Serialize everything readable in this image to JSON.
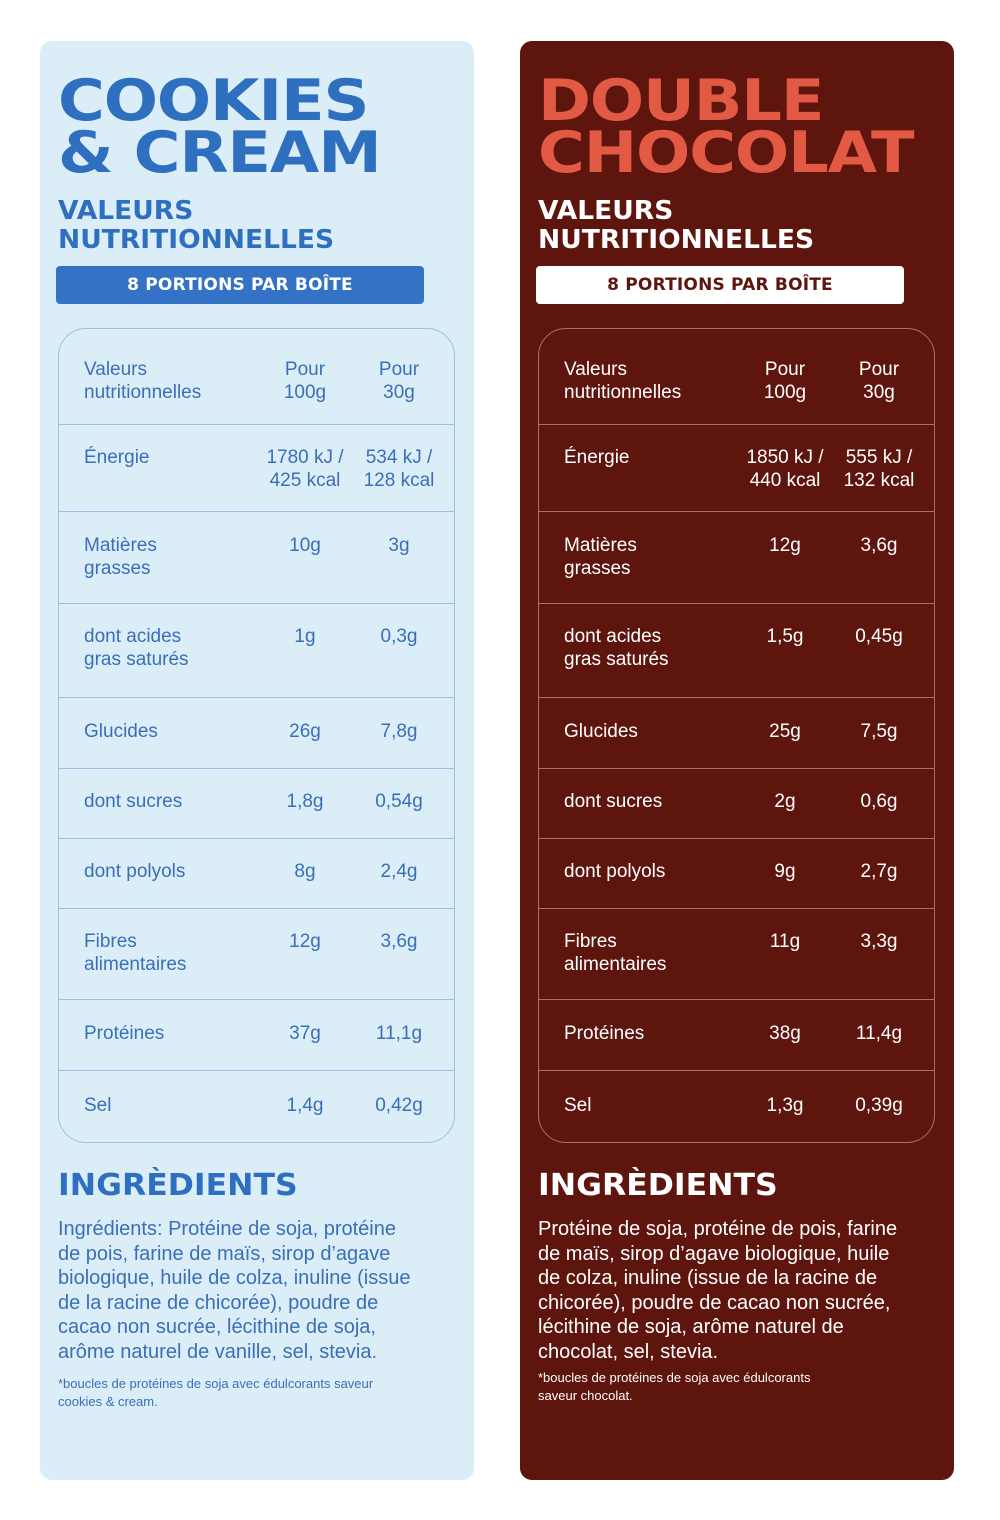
{
  "left": {
    "title_line1": "COOKIES",
    "title_line2": "& CREAM",
    "subtitle_line1": "VALEURS",
    "subtitle_line2": "NUTRITIONNELLES",
    "portions": "8 PORTIONS PAR BOÎTE",
    "header": {
      "label_line1": "Valeurs",
      "label_line2": "nutritionnelles",
      "col1_line1": "Pour",
      "col1_line2": "100g",
      "col2_line1": "Pour",
      "col2_line2": "30g"
    },
    "rows": [
      {
        "l1": "Énergie",
        "l2": "",
        "v100a": "1780 kJ /",
        "v100b": "425 kcal",
        "v30a": "534 kJ /",
        "v30b": "128 kcal"
      },
      {
        "l1": "Matières",
        "l2": "grasses",
        "v100a": "10g",
        "v100b": "",
        "v30a": "3g",
        "v30b": ""
      },
      {
        "l1": "dont acides",
        "l2": "gras saturés",
        "v100a": "1g",
        "v100b": "",
        "v30a": "0,3g",
        "v30b": ""
      },
      {
        "l1": "Glucides",
        "l2": "",
        "v100a": "26g",
        "v100b": "",
        "v30a": "7,8g",
        "v30b": ""
      },
      {
        "l1": "dont sucres",
        "l2": "",
        "v100a": "1,8g",
        "v100b": "",
        "v30a": "0,54g",
        "v30b": ""
      },
      {
        "l1": "dont polyols",
        "l2": "",
        "v100a": "8g",
        "v100b": "",
        "v30a": "2,4g",
        "v30b": ""
      },
      {
        "l1": "Fibres",
        "l2": "alimentaires",
        "v100a": "12g",
        "v100b": "",
        "v30a": "3,6g",
        "v30b": ""
      },
      {
        "l1": "Protéines",
        "l2": "",
        "v100a": "37g",
        "v100b": "",
        "v30a": "11,1g",
        "v30b": ""
      },
      {
        "l1": "Sel",
        "l2": "",
        "v100a": "1,4g",
        "v100b": "",
        "v30a": "0,42g",
        "v30b": ""
      }
    ],
    "ingredients_title": "INGRÈDIENTS",
    "ingredients_lines": [
      "Ingrédients: Protéine de soja, protéine",
      "de pois, farine de maïs, sirop d’agave",
      "biologique, huile de colza, inuline (issue",
      "de la racine de chicorée), poudre de",
      "cacao non sucrée, lécithine de soja,",
      "arôme naturel de vanille, sel, stevia."
    ],
    "note_line1": "*boucles de protéines de soja avec édulcorants saveur",
    "note_line2": "cookies & cream."
  },
  "right": {
    "title_line1": "DOUBLE",
    "title_line2": "CHOCOLAT",
    "subtitle_line1": "VALEURS",
    "subtitle_line2": "NUTRITIONNELLES",
    "portions": "8 PORTIONS PAR BOÎTE",
    "header": {
      "label_line1": "Valeurs",
      "label_line2": "nutritionnelles",
      "col1_line1": "Pour",
      "col1_line2": "100g",
      "col2_line1": "Pour",
      "col2_line2": "30g"
    },
    "rows": [
      {
        "l1": "Énergie",
        "l2": "",
        "v100a": "1850 kJ /",
        "v100b": "440 kcal",
        "v30a": "555 kJ /",
        "v30b": "132 kcal"
      },
      {
        "l1": "Matières",
        "l2": "grasses",
        "v100a": "12g",
        "v100b": "",
        "v30a": "3,6g",
        "v30b": ""
      },
      {
        "l1": "dont acides",
        "l2": "gras saturés",
        "v100a": "1,5g",
        "v100b": "",
        "v30a": "0,45g",
        "v30b": ""
      },
      {
        "l1": "Glucides",
        "l2": "",
        "v100a": "25g",
        "v100b": "",
        "v30a": "7,5g",
        "v30b": ""
      },
      {
        "l1": "dont sucres",
        "l2": "",
        "v100a": "2g",
        "v100b": "",
        "v30a": "0,6g",
        "v30b": ""
      },
      {
        "l1": "dont polyols",
        "l2": "",
        "v100a": "9g",
        "v100b": "",
        "v30a": "2,7g",
        "v30b": ""
      },
      {
        "l1": "Fibres",
        "l2": "alimentaires",
        "v100a": "11g",
        "v100b": "",
        "v30a": "3,3g",
        "v30b": ""
      },
      {
        "l1": "Protéines",
        "l2": "",
        "v100a": "38g",
        "v100b": "",
        "v30a": "11,4g",
        "v30b": ""
      },
      {
        "l1": "Sel",
        "l2": "",
        "v100a": "1,3g",
        "v100b": "",
        "v30a": "0,39g",
        "v30b": ""
      }
    ],
    "ingredients_title": "INGRÈDIENTS",
    "ingredients_lines": [
      "Protéine de soja, protéine de pois, farine",
      "de maïs, sirop d’agave biologique, huile",
      "de colza, inuline (issue de la racine de",
      "chicorée), poudre de cacao non sucrée,",
      "lécithine de soja, arôme naturel de",
      "chocolat, sel, stevia."
    ],
    "note_line1": "*boucles de protéines de soja avec édulcorants",
    "note_line2": "saveur chocolat."
  }
}
